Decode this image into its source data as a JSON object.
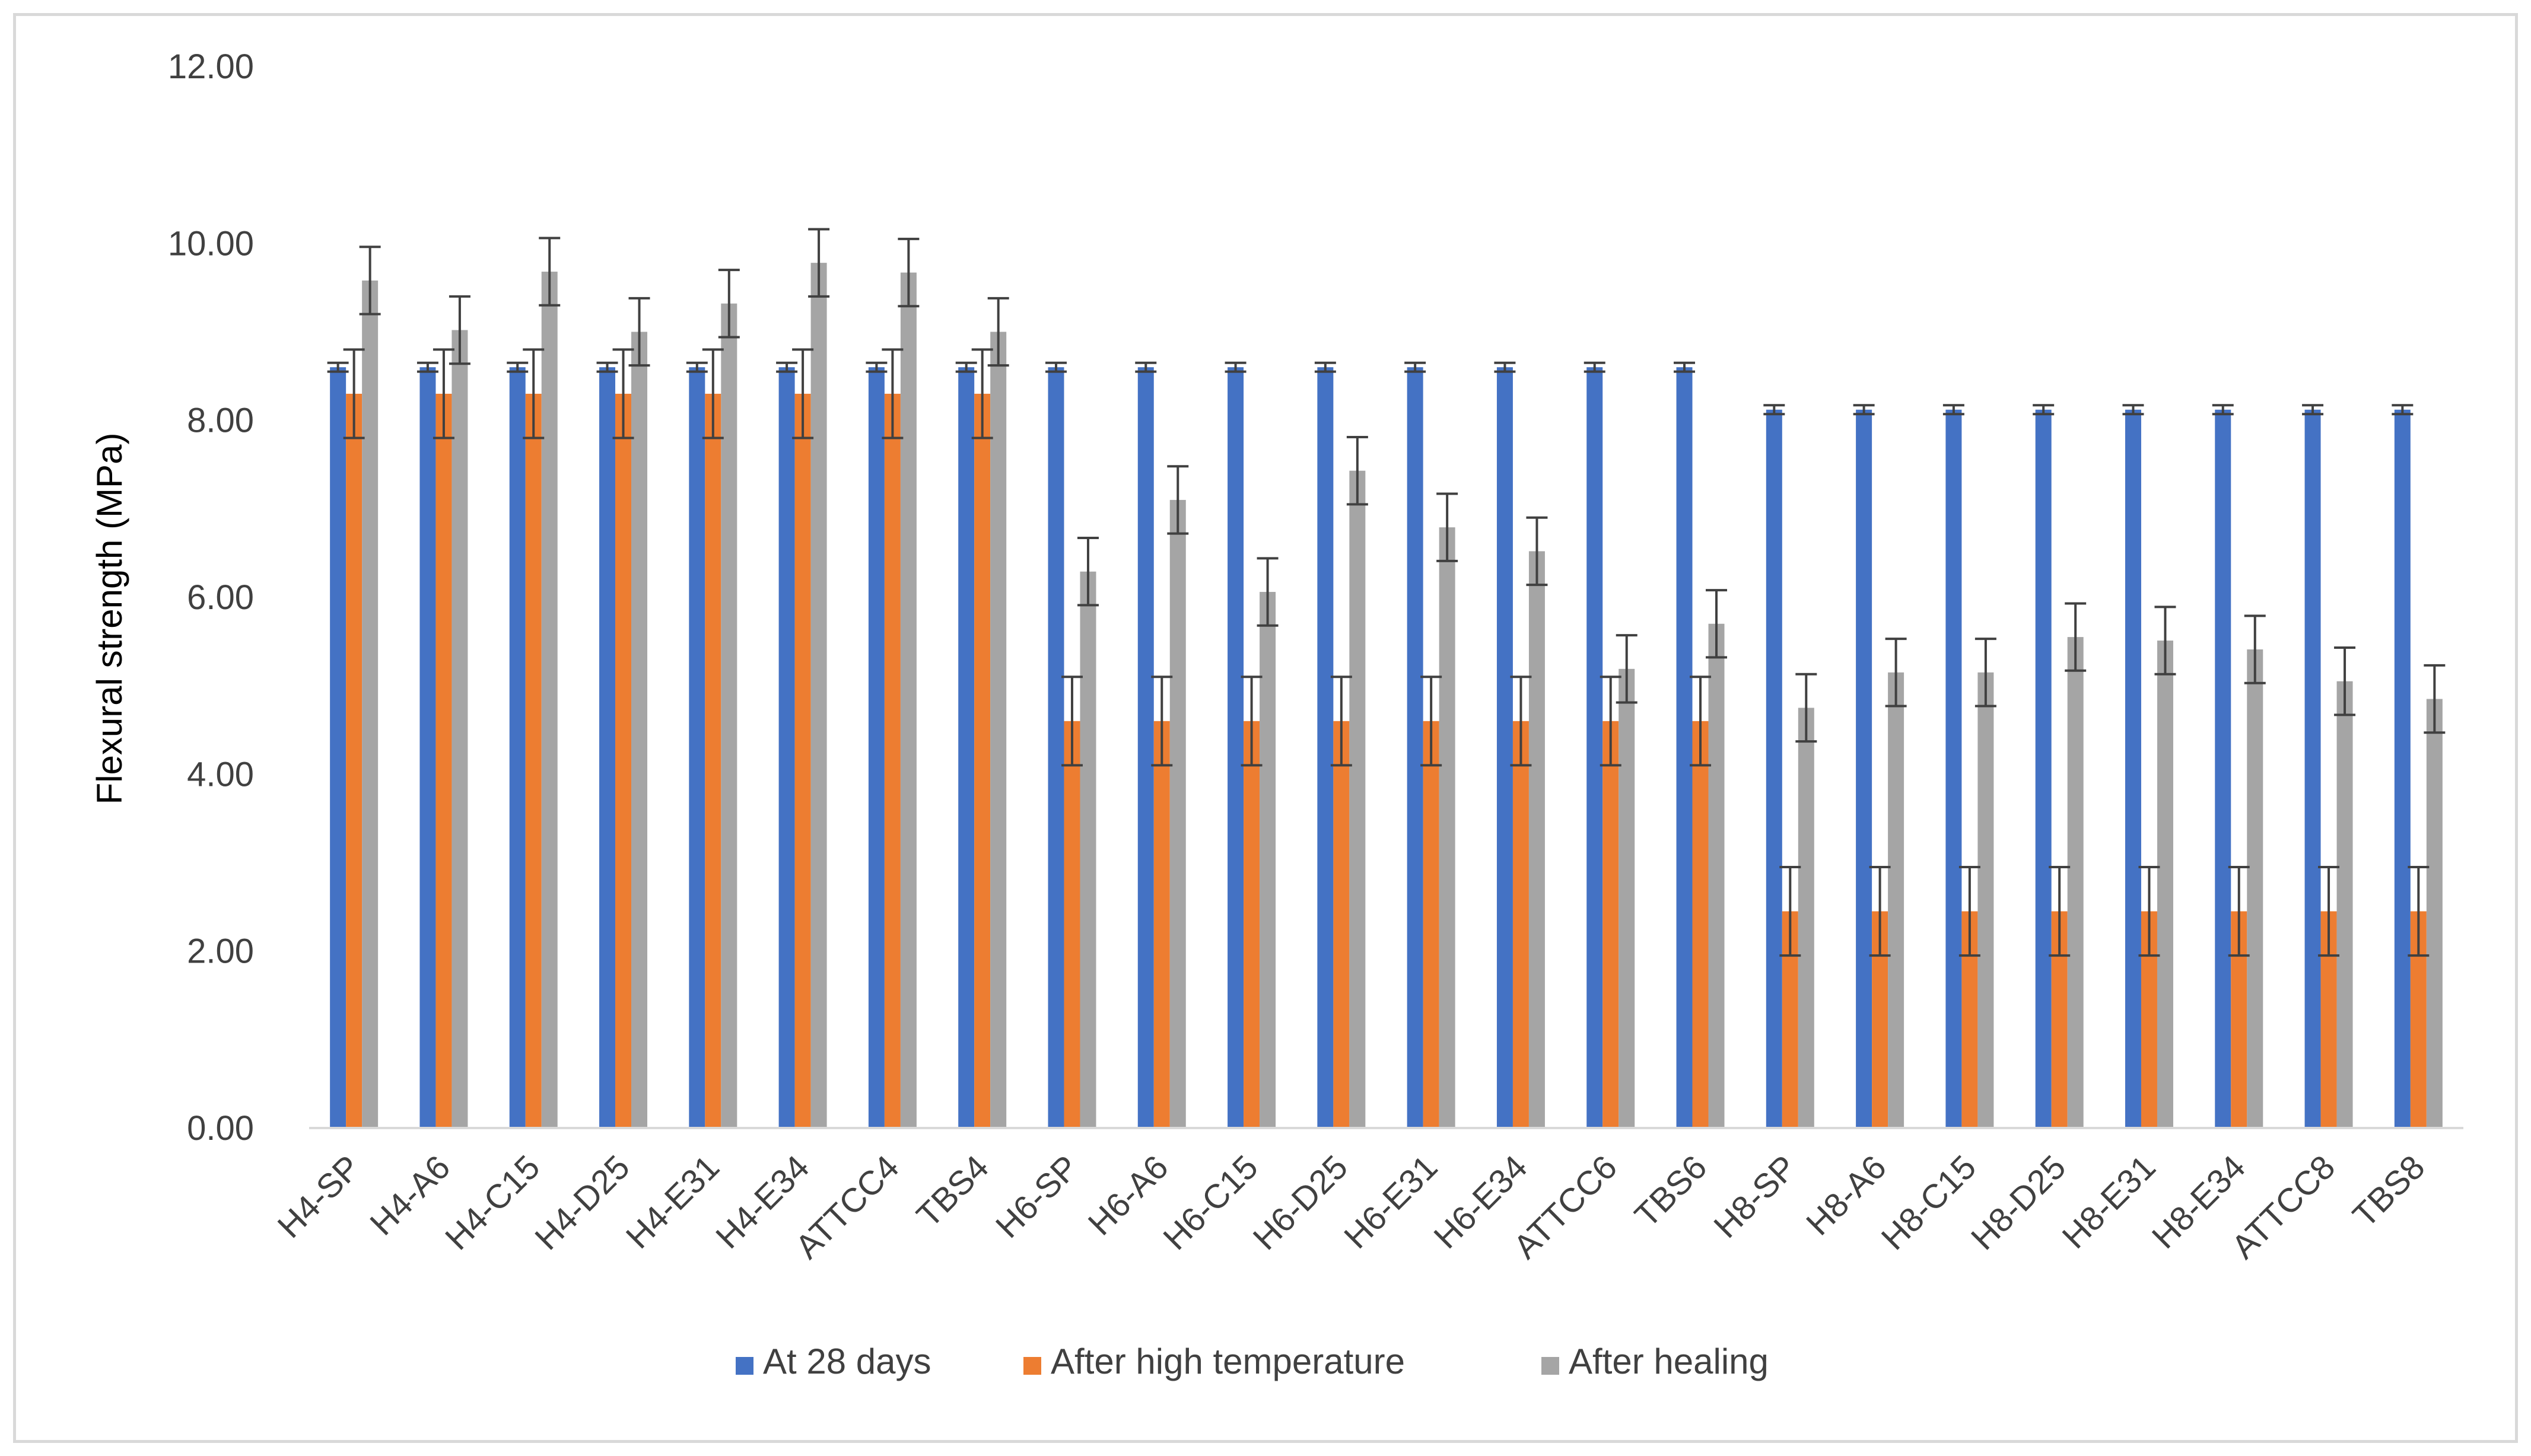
{
  "chart_data": {
    "type": "bar",
    "title": "",
    "xlabel": "",
    "ylabel": "Flexural strength (MPa)",
    "ylim": [
      0,
      12
    ],
    "yticks": [
      "0.00",
      "2.00",
      "4.00",
      "6.00",
      "8.00",
      "10.00",
      "12.00"
    ],
    "grid": false,
    "legend_position": "bottom",
    "error_bars": true,
    "categories": [
      "H4-SP",
      "H4-A6",
      "H4-C15",
      "H4-D25",
      "H4-E31",
      "H4-E34",
      "ATTCC4",
      "TBS4",
      "H6-SP",
      "H6-A6",
      "H6-C15",
      "H6-D25",
      "H6-E31",
      "H6-E34",
      "ATTCC6",
      "TBS6",
      "H8-SP",
      "H8-A6",
      "H8-C15",
      "H8-D25",
      "H8-E31",
      "H8-E34",
      "ATTCC8",
      "TBS8"
    ],
    "series": [
      {
        "name": "At 28 days",
        "color": "#4472C4",
        "values": [
          8.6,
          8.6,
          8.6,
          8.6,
          8.6,
          8.6,
          8.6,
          8.6,
          8.6,
          8.6,
          8.6,
          8.6,
          8.6,
          8.6,
          8.6,
          8.6,
          8.12,
          8.12,
          8.12,
          8.12,
          8.12,
          8.12,
          8.12,
          8.12
        ],
        "errors": [
          0.05,
          0.05,
          0.05,
          0.05,
          0.05,
          0.05,
          0.05,
          0.05,
          0.05,
          0.05,
          0.05,
          0.05,
          0.05,
          0.05,
          0.05,
          0.05,
          0.05,
          0.05,
          0.05,
          0.05,
          0.05,
          0.05,
          0.05,
          0.05
        ]
      },
      {
        "name": "After high temperature",
        "color": "#ED7D31",
        "values": [
          8.3,
          8.3,
          8.3,
          8.3,
          8.3,
          8.3,
          8.3,
          8.3,
          4.6,
          4.6,
          4.6,
          4.6,
          4.6,
          4.6,
          4.6,
          4.6,
          2.45,
          2.45,
          2.45,
          2.45,
          2.45,
          2.45,
          2.45,
          2.45
        ],
        "errors": [
          0.5,
          0.5,
          0.5,
          0.5,
          0.5,
          0.5,
          0.5,
          0.5,
          0.5,
          0.5,
          0.5,
          0.5,
          0.5,
          0.5,
          0.5,
          0.5,
          0.5,
          0.5,
          0.5,
          0.5,
          0.5,
          0.5,
          0.5,
          0.5
        ]
      },
      {
        "name": "After healing",
        "color": "#A5A5A5",
        "values": [
          9.58,
          9.02,
          9.68,
          9.0,
          9.32,
          9.78,
          9.67,
          9.0,
          6.29,
          7.1,
          6.06,
          7.43,
          6.79,
          6.52,
          5.19,
          5.7,
          4.75,
          5.15,
          5.15,
          5.55,
          5.51,
          5.41,
          5.05,
          4.85
        ],
        "errors": [
          0.38,
          0.38,
          0.38,
          0.38,
          0.38,
          0.38,
          0.38,
          0.38,
          0.38,
          0.38,
          0.38,
          0.38,
          0.38,
          0.38,
          0.38,
          0.38,
          0.38,
          0.38,
          0.38,
          0.38,
          0.38,
          0.38,
          0.38,
          0.38
        ]
      }
    ]
  }
}
